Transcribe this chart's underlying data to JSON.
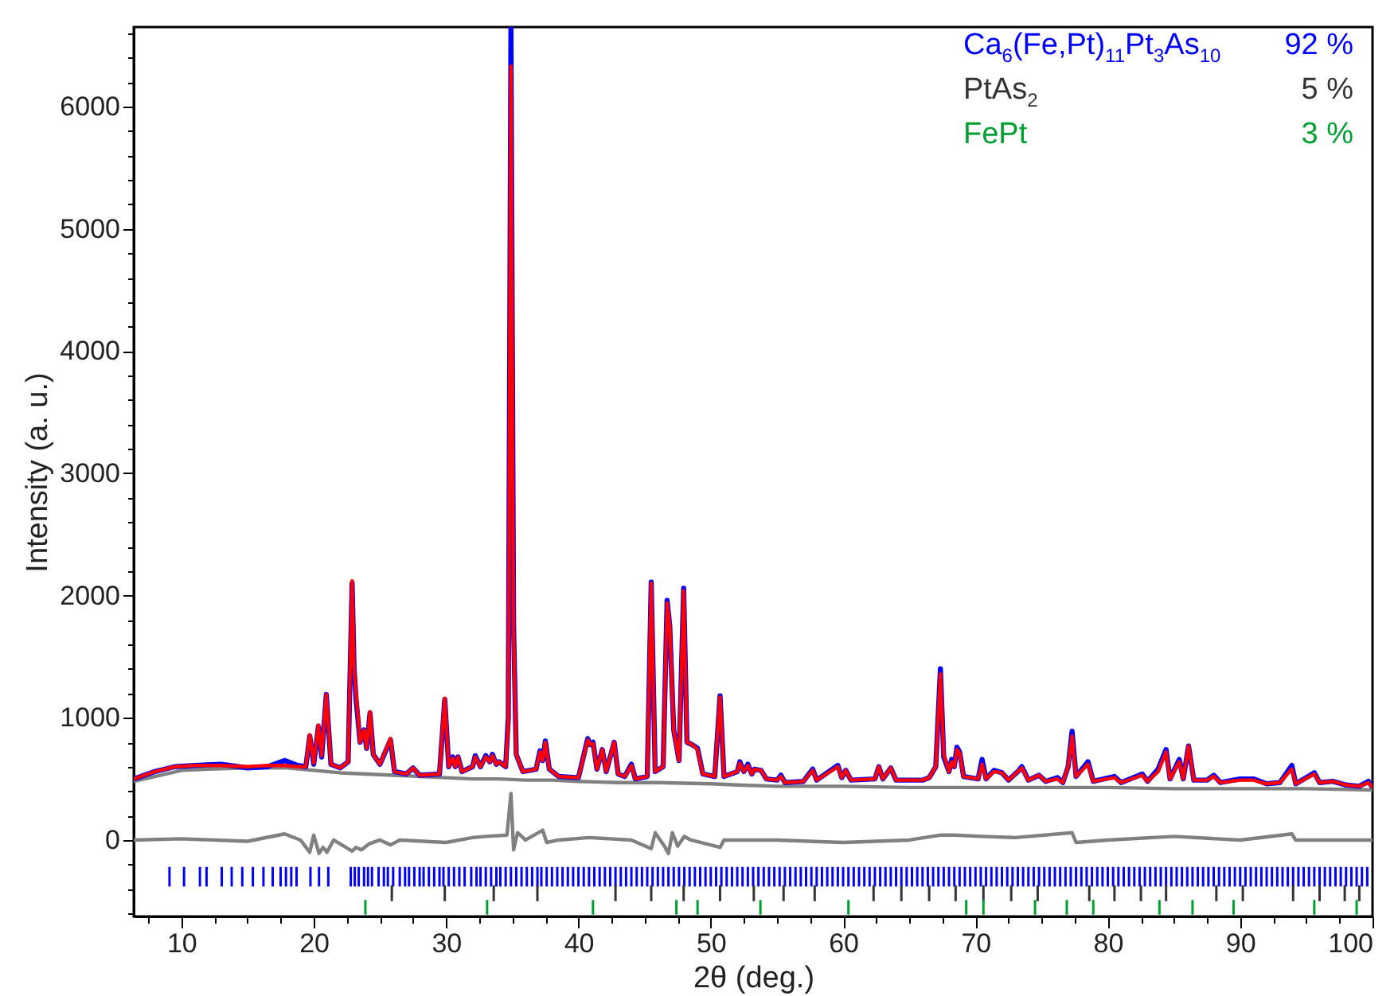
{
  "chart_data": {
    "type": "line",
    "xlabel": "2θ (deg.)",
    "ylabel": "Intensity (a. u.)",
    "xlim": [
      6.4,
      100
    ],
    "ylim": [
      -625,
      6650
    ],
    "xticks": [
      {
        "value": 7.5,
        "label": null
      },
      10,
      {
        "value": 12.5,
        "label": null
      },
      {
        "value": 15,
        "label": null
      },
      {
        "value": 17.5,
        "label": null
      },
      20,
      {
        "value": 22.5,
        "label": null
      },
      {
        "value": 25,
        "label": null
      },
      {
        "value": 27.5,
        "label": null
      },
      30,
      {
        "value": 32.5,
        "label": null
      },
      {
        "value": 35,
        "label": null
      },
      {
        "value": 37.5,
        "label": null
      },
      40,
      {
        "value": 42.5,
        "label": null
      },
      {
        "value": 45,
        "label": null
      },
      {
        "value": 47.5,
        "label": null
      },
      50,
      {
        "value": 52.5,
        "label": null
      },
      {
        "value": 55,
        "label": null
      },
      {
        "value": 57.5,
        "label": null
      },
      60,
      {
        "value": 62.5,
        "label": null
      },
      {
        "value": 65,
        "label": null
      },
      {
        "value": 67.5,
        "label": null
      },
      70,
      {
        "value": 72.5,
        "label": null
      },
      {
        "value": 75,
        "label": null
      },
      {
        "value": 77.5,
        "label": null
      },
      80,
      {
        "value": 82.5,
        "label": null
      },
      {
        "value": 85,
        "label": null
      },
      {
        "value": 87.5,
        "label": null
      },
      90,
      {
        "value": 92.5,
        "label": null
      },
      {
        "value": 95,
        "label": null
      },
      {
        "value": 97.5,
        "label": null
      },
      100
    ],
    "yticks": [
      {
        "value": -600,
        "label": null
      },
      {
        "value": -400,
        "label": null
      },
      {
        "value": -200,
        "label": null
      },
      0,
      {
        "value": 200,
        "label": null
      },
      {
        "value": 400,
        "label": null
      },
      {
        "value": 600,
        "label": null
      },
      {
        "value": 800,
        "label": null
      },
      1000,
      {
        "value": 1200,
        "label": null
      },
      {
        "value": 1400,
        "label": null
      },
      {
        "value": 1600,
        "label": null
      },
      {
        "value": 1800,
        "label": null
      },
      2000,
      {
        "value": 2200,
        "label": null
      },
      {
        "value": 2400,
        "label": null
      },
      {
        "value": 2600,
        "label": null
      },
      {
        "value": 2800,
        "label": null
      },
      3000,
      {
        "value": 3200,
        "label": null
      },
      {
        "value": 3400,
        "label": null
      },
      {
        "value": 3600,
        "label": null
      },
      {
        "value": 3800,
        "label": null
      },
      4000,
      {
        "value": 4200,
        "label": null
      },
      {
        "value": 4400,
        "label": null
      },
      {
        "value": 4600,
        "label": null
      },
      {
        "value": 4800,
        "label": null
      },
      5000,
      {
        "value": 5200,
        "label": null
      },
      {
        "value": 5400,
        "label": null
      },
      {
        "value": 5600,
        "label": null
      },
      {
        "value": 5800,
        "label": null
      },
      6000,
      {
        "value": 6200,
        "label": null
      },
      {
        "value": 6400,
        "label": null
      },
      {
        "value": 6600,
        "label": null
      }
    ],
    "grid": false,
    "legend": "top right",
    "annotations": [
      "92 %",
      "5 %",
      "3 %"
    ],
    "x": [
      6.4,
      8,
      9.5,
      11,
      13,
      15,
      16.5,
      17.8,
      18.8,
      19.4,
      19.7,
      20.0,
      20.35,
      20.6,
      20.95,
      21.3,
      22.0,
      22.6,
      22.9,
      23.05,
      23.2,
      23.5,
      23.8,
      24.0,
      24.25,
      24.5,
      25.0,
      25.8,
      26.1,
      27.0,
      27.5,
      28.0,
      29.5,
      29.9,
      30.2,
      30.5,
      30.7,
      30.9,
      31.2,
      32.0,
      32.2,
      32.6,
      33.0,
      33.3,
      33.5,
      33.8,
      34.0,
      34.5,
      34.7,
      34.9,
      35.1,
      35.3,
      35.8,
      36.8,
      37.1,
      37.3,
      37.5,
      37.8,
      38.5,
      40.0,
      40.7,
      40.9,
      41.1,
      41.4,
      41.8,
      42.1,
      42.7,
      43.0,
      43.5,
      44.0,
      44.3,
      45.2,
      45.5,
      45.8,
      46.4,
      46.7,
      46.9,
      47.2,
      47.6,
      47.95,
      48.2,
      48.6,
      49.0,
      49.4,
      50.3,
      50.7,
      51.0,
      52.0,
      52.2,
      52.5,
      52.8,
      53.1,
      53.3,
      53.8,
      54.2,
      55.0,
      55.3,
      55.6,
      57.0,
      57.7,
      58.0,
      59.6,
      59.9,
      60.2,
      60.6,
      62.4,
      62.7,
      63.0,
      63.6,
      64.0,
      66.0,
      66.5,
      67.0,
      67.35,
      67.6,
      68.0,
      68.2,
      68.4,
      68.6,
      68.8,
      69.1,
      70.2,
      70.5,
      70.8,
      71.4,
      72.0,
      72.5,
      73.2,
      73.5,
      74.0,
      74.8,
      75.3,
      76.2,
      76.6,
      77.0,
      77.3,
      77.6,
      78.5,
      78.9,
      80.5,
      81.0,
      82.6,
      83.0,
      83.8,
      84.4,
      84.7,
      85.4,
      85.7,
      86.1,
      86.5,
      87.5,
      88.0,
      88.5,
      90.0,
      91.0,
      92.0,
      93.0,
      93.9,
      94.2,
      95.6,
      96.0,
      97.0,
      98.0,
      99.0,
      99.7,
      100
    ],
    "series": [
      {
        "color": "#808080",
        "x": [
          6.4,
          8,
          10,
          12,
          15,
          17,
          18,
          19,
          20,
          22,
          24,
          26,
          28,
          30,
          32,
          34,
          36,
          38,
          40,
          43,
          46,
          50,
          52,
          55,
          60,
          65,
          70,
          75,
          80,
          85,
          90,
          95,
          100
        ],
        "values": [
          480,
          520,
          570,
          580,
          590,
          590,
          590,
          580,
          570,
          550,
          540,
          530,
          520,
          510,
          500,
          500,
          490,
          490,
          480,
          470,
          470,
          460,
          450,
          440,
          440,
          430,
          430,
          430,
          430,
          420,
          420,
          420,
          410
        ]
      },
      {
        "color": "#808080",
        "x": [
          6.4,
          10,
          15,
          17.8,
          19,
          19.7,
          20.0,
          20.4,
          20.7,
          21.0,
          21.5,
          22.9,
          23.2,
          23.6,
          24.2,
          25.0,
          25.8,
          26.5,
          30,
          32,
          33,
          34.6,
          34.9,
          35.1,
          35.4,
          36,
          37.3,
          37.6,
          38.5,
          40.8,
          44,
          45.5,
          45.8,
          46.5,
          46.8,
          47.1,
          47.5,
          48,
          48.5,
          50.7,
          51,
          55,
          60,
          65,
          67.3,
          68.4,
          70.5,
          73,
          77.3,
          77.6,
          80,
          85,
          90,
          93.9,
          94.2,
          100
        ],
        "values": [
          0,
          10,
          -10,
          50,
          0,
          -100,
          40,
          -110,
          -60,
          -100,
          0,
          -90,
          -60,
          -80,
          -30,
          0,
          -40,
          0,
          -20,
          20,
          30,
          40,
          380,
          -80,
          60,
          0,
          80,
          -20,
          0,
          20,
          0,
          -70,
          60,
          -50,
          -110,
          60,
          -50,
          30,
          0,
          -60,
          0,
          0,
          -20,
          0,
          40,
          40,
          30,
          20,
          60,
          -20,
          0,
          30,
          0,
          50,
          0,
          0
        ]
      },
      {
        "color": "#0000ff",
        "values": [
          500,
          560,
          600,
          610,
          620,
          590,
          600,
          650,
          610,
          600,
          850,
          620,
          930,
          680,
          1190,
          620,
          590,
          640,
          2100,
          1400,
          1150,
          800,
          900,
          750,
          1040,
          700,
          620,
          820,
          560,
          540,
          590,
          530,
          540,
          1150,
          600,
          680,
          600,
          680,
          560,
          600,
          690,
          600,
          690,
          640,
          700,
          620,
          640,
          600,
          1000,
          6640,
          1750,
          700,
          560,
          580,
          730,
          650,
          810,
          580,
          520,
          510,
          830,
          780,
          800,
          580,
          740,
          560,
          800,
          540,
          520,
          620,
          500,
          520,
          2110,
          560,
          600,
          1960,
          1750,
          900,
          650,
          2060,
          800,
          780,
          750,
          540,
          520,
          1180,
          520,
          560,
          640,
          560,
          620,
          540,
          580,
          570,
          500,
          490,
          530,
          470,
          480,
          580,
          490,
          610,
          510,
          570,
          490,
          500,
          600,
          500,
          590,
          490,
          490,
          510,
          600,
          1400,
          680,
          560,
          660,
          600,
          760,
          720,
          520,
          500,
          660,
          500,
          570,
          550,
          490,
          560,
          600,
          490,
          530,
          480,
          510,
          470,
          600,
          890,
          520,
          640,
          480,
          520,
          470,
          540,
          480,
          580,
          740,
          500,
          660,
          500,
          770,
          490,
          490,
          530,
          470,
          500,
          500,
          460,
          470,
          610,
          460,
          550,
          470,
          480,
          450,
          440,
          480,
          430
        ]
      },
      {
        "color": "#ff0000",
        "values": [
          500,
          560,
          600,
          610,
          610,
          600,
          610,
          610,
          600,
          600,
          860,
          630,
          940,
          690,
          1190,
          620,
          590,
          640,
          2120,
          1400,
          1200,
          800,
          900,
          750,
          1050,
          700,
          620,
          830,
          560,
          540,
          590,
          530,
          540,
          1160,
          600,
          670,
          600,
          680,
          560,
          600,
          680,
          600,
          680,
          640,
          690,
          620,
          640,
          600,
          960,
          6330,
          1700,
          700,
          560,
          580,
          720,
          650,
          800,
          580,
          520,
          510,
          820,
          780,
          790,
          580,
          740,
          560,
          800,
          540,
          520,
          610,
          500,
          520,
          2100,
          560,
          600,
          1940,
          1750,
          900,
          650,
          2040,
          800,
          780,
          740,
          540,
          520,
          1170,
          520,
          560,
          630,
          560,
          610,
          540,
          580,
          570,
          500,
          490,
          520,
          470,
          480,
          570,
          490,
          600,
          510,
          570,
          490,
          500,
          600,
          500,
          590,
          490,
          490,
          510,
          600,
          1360,
          700,
          560,
          640,
          600,
          740,
          710,
          520,
          500,
          620,
          500,
          560,
          550,
          490,
          560,
          590,
          490,
          530,
          480,
          500,
          470,
          600,
          850,
          520,
          620,
          480,
          510,
          470,
          530,
          480,
          560,
          720,
          500,
          640,
          500,
          770,
          490,
          490,
          520,
          470,
          490,
          490,
          460,
          470,
          580,
          460,
          540,
          470,
          480,
          450,
          440,
          470,
          430
        ]
      },
      {
        "type": "bar",
        "name": "Ca$_{6}$(Fe,Pt)$_{11}$Pt$_{3}$As$_{10}$",
        "color": "#0000ff",
        "base": [
          -380,
          -380,
          -380,
          -380,
          -380,
          -380,
          -380,
          -380,
          -380,
          -380,
          -380,
          -380,
          -380,
          -380,
          -380,
          -380,
          -380,
          -380,
          -380,
          -380,
          -380,
          -380,
          -380,
          -380,
          -380,
          -380,
          -380,
          -380,
          -380,
          -380,
          -380,
          -380,
          -380,
          -380,
          -380,
          -380,
          -380,
          -380,
          -380,
          -380,
          -380,
          -380,
          -380,
          -380,
          -380,
          -380,
          -380,
          -380,
          -380,
          -380,
          -380,
          -380,
          -380,
          -380,
          -380,
          -380,
          -380,
          -380,
          -380,
          -380,
          -380,
          -380,
          -380,
          -380,
          -380,
          -380,
          -380,
          -380,
          -380,
          -380,
          -380,
          -380,
          -380,
          -380,
          -380,
          -380,
          -380,
          -380,
          -380,
          -380,
          -380,
          -380,
          -380,
          -380,
          -380,
          -380,
          -380,
          -380,
          -380,
          -380,
          -380,
          -380,
          -380,
          -380,
          -380,
          -380,
          -380,
          -380,
          -380,
          -380,
          -380,
          -380,
          -380,
          -380,
          -380,
          -380,
          -380,
          -380,
          -380,
          -380,
          -380,
          -380,
          -380,
          -380,
          -380,
          -380,
          -380,
          -380,
          -380,
          -380,
          -380,
          -380,
          -380,
          -380,
          -380,
          -380,
          -380,
          -380,
          -380,
          -380,
          -380,
          -380,
          -380,
          -380,
          -380,
          -380,
          -380,
          -380,
          -380,
          -380,
          -380,
          -380,
          -380,
          -380,
          -380,
          -380,
          -380,
          -380,
          -380,
          -380,
          -380,
          -380,
          -380,
          -380,
          -380,
          -380,
          -380,
          -380,
          -380,
          -380,
          -380,
          -380,
          -380,
          -380,
          -380,
          -380,
          -380,
          -380,
          -380,
          -380,
          -380,
          -380,
          -380,
          -380,
          -380,
          -380,
          -380,
          -380,
          -380,
          -380,
          -380,
          -380,
          -380,
          -380,
          -380,
          -380,
          -380,
          -380,
          -380,
          -380,
          -380,
          -380,
          -380,
          -380,
          -380,
          -380,
          -380,
          -380,
          -380,
          -380,
          -380,
          -380,
          -380,
          -380,
          -380,
          -380,
          -380,
          -380,
          -380,
          -380,
          -380,
          -380
        ],
        "x": [
          9.1,
          10.2,
          11.4,
          11.9,
          13.05,
          13.8,
          14.6,
          15.4,
          16.2,
          16.9,
          17.5,
          17.9,
          18.3,
          18.7,
          19.75,
          20.4,
          21.1,
          22.8,
          23.1,
          23.4,
          23.8,
          24.1,
          24.4,
          24.9,
          25.3,
          25.6,
          26.0,
          26.5,
          26.9,
          27.2,
          27.6,
          28.0,
          28.3,
          28.7,
          29.1,
          29.5,
          29.8,
          30.2,
          30.6,
          31.0,
          31.4,
          31.9,
          32.3,
          32.6,
          33.0,
          33.4,
          33.8,
          34.1,
          34.5,
          34.9,
          35.3,
          35.7,
          36.1,
          36.5,
          36.9,
          37.2,
          37.6,
          38.0,
          38.4,
          38.8,
          39.2,
          39.6,
          40.0,
          40.4,
          40.8,
          41.2,
          41.6,
          42.0,
          42.4,
          42.8,
          43.2,
          43.6,
          44.0,
          44.4,
          44.8,
          45.2,
          45.6,
          46.0,
          46.4,
          46.8,
          47.2,
          47.6,
          48.0,
          48.4,
          48.8,
          49.2,
          49.6,
          50.0,
          50.4,
          50.8,
          51.2,
          51.6,
          52.0,
          52.4,
          52.8,
          53.2,
          53.6,
          54.0,
          54.4,
          54.8,
          55.2,
          55.6,
          56.0,
          56.4,
          56.8,
          57.2,
          57.6,
          58.0,
          58.4,
          58.8,
          59.2,
          59.6,
          60.0,
          60.4,
          60.8,
          61.2,
          61.6,
          62.0,
          62.4,
          62.8,
          63.2,
          63.6,
          64.0,
          64.4,
          64.8,
          65.2,
          65.6,
          66.0,
          66.4,
          66.8,
          67.2,
          67.6,
          68.0,
          68.4,
          68.8,
          69.2,
          69.6,
          70.0,
          70.4,
          70.8,
          71.2,
          71.6,
          72.0,
          72.4,
          72.8,
          73.2,
          73.6,
          74.0,
          74.4,
          74.8,
          75.2,
          75.6,
          76.0,
          76.4,
          76.8,
          77.2,
          77.6,
          78.0,
          78.4,
          78.8,
          79.2,
          79.6,
          80.0,
          80.4,
          80.8,
          81.2,
          81.6,
          82.0,
          82.4,
          82.8,
          83.2,
          83.6,
          84.0,
          84.4,
          84.8,
          85.2,
          85.6,
          86.0,
          86.4,
          86.8,
          87.2,
          87.6,
          88.0,
          88.4,
          88.8,
          89.2,
          89.6,
          90.0,
          90.4,
          90.8,
          91.2,
          91.6,
          92.0,
          92.4,
          92.8,
          93.2,
          93.6,
          94.0,
          94.4,
          94.8,
          95.2,
          95.6,
          96.0,
          96.4,
          96.8,
          97.2,
          97.6,
          98.0,
          98.4,
          98.8,
          99.2,
          99.6
        ],
        "values": [
          160,
          160,
          160,
          160,
          160,
          160,
          160,
          160,
          160,
          160,
          160,
          160,
          160,
          160,
          160,
          160,
          160,
          160,
          160,
          160,
          160,
          160,
          160,
          160,
          160,
          160,
          160,
          160,
          160,
          160,
          160,
          160,
          160,
          160,
          160,
          160,
          160,
          160,
          160,
          160,
          160,
          160,
          160,
          160,
          160,
          160,
          160,
          160,
          160,
          160,
          160,
          160,
          160,
          160,
          160,
          160,
          160,
          160,
          160,
          160,
          160,
          160,
          160,
          160,
          160,
          160,
          160,
          160,
          160,
          160,
          160,
          160,
          160,
          160,
          160,
          160,
          160,
          160,
          160,
          160,
          160,
          160,
          160,
          160,
          160,
          160,
          160,
          160,
          160,
          160,
          160,
          160,
          160,
          160,
          160,
          160,
          160,
          160,
          160,
          160,
          160,
          160,
          160,
          160,
          160,
          160,
          160,
          160,
          160,
          160,
          160,
          160,
          160,
          160,
          160,
          160,
          160,
          160,
          160,
          160,
          160,
          160,
          160,
          160,
          160,
          160,
          160,
          160,
          160,
          160,
          160,
          160,
          160,
          160,
          160,
          160,
          160,
          160,
          160,
          160,
          160,
          160,
          160,
          160,
          160,
          160,
          160,
          160,
          160,
          160,
          160,
          160,
          160,
          160,
          160,
          160,
          160,
          160,
          160,
          160,
          160,
          160,
          160,
          160,
          160,
          160,
          160,
          160,
          160,
          160,
          160,
          160,
          160,
          160,
          160,
          160,
          160,
          160,
          160,
          160,
          160,
          160,
          160,
          160,
          160,
          160,
          160,
          160,
          160,
          160,
          160,
          160,
          160,
          160,
          160,
          160,
          160,
          160,
          160,
          160,
          160,
          160,
          160,
          160,
          160,
          160,
          160,
          160,
          160,
          160,
          160,
          160
        ]
      },
      {
        "type": "bar",
        "name": "PtAs$_{2}$",
        "color": "#333333",
        "base": [
          -500,
          -500,
          -500,
          -500,
          -500,
          -500,
          -500,
          -500,
          -500,
          -500,
          -500,
          -500,
          -500,
          -500,
          -500,
          -500,
          -500,
          -500,
          -500,
          -500,
          -500,
          -500,
          -500,
          -500,
          -500,
          -500,
          -500,
          -500
        ],
        "x": [
          25.9,
          29.9,
          33.6,
          36.9,
          42.8,
          45.5,
          47.95,
          50.7,
          53.25,
          55.5,
          57.85,
          62.3,
          64.4,
          66.5,
          68.5,
          70.6,
          72.7,
          74.7,
          78.6,
          80.5,
          82.5,
          84.4,
          88.2,
          90.2,
          94.0,
          96.0,
          97.9,
          99.0
        ],
        "values": [
          130,
          130,
          130,
          130,
          130,
          130,
          130,
          130,
          130,
          130,
          130,
          130,
          130,
          130,
          130,
          130,
          130,
          130,
          130,
          130,
          130,
          130,
          130,
          130,
          130,
          130,
          130,
          130
        ]
      },
      {
        "type": "bar",
        "name": "FePt",
        "color": "#00a030",
        "base": [
          -610,
          -610,
          -610,
          -610,
          -610,
          -610,
          -610,
          -610,
          -610,
          -610,
          -610,
          -610,
          -610,
          -610,
          -610,
          -610,
          -610
        ],
        "x": [
          23.9,
          33.1,
          41.1,
          47.4,
          49.0,
          53.75,
          60.4,
          69.3,
          70.6,
          74.5,
          76.9,
          78.9,
          83.9,
          86.4,
          89.5,
          95.6,
          98.8
        ],
        "values": [
          120,
          120,
          120,
          120,
          120,
          120,
          120,
          120,
          120,
          120,
          120,
          120,
          120,
          120,
          120,
          120,
          120
        ]
      }
    ]
  }
}
